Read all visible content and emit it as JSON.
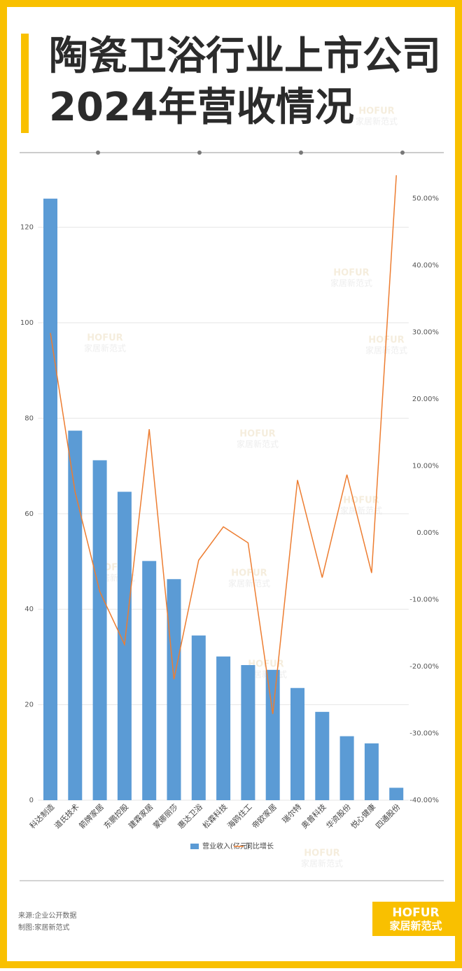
{
  "title_lines": [
    "陶瓷卫浴行业上市公司",
    "2024年营收情况"
  ],
  "chart_data": {
    "type": "bar-line",
    "categories": [
      "科达制造",
      "道氏技术",
      "箭牌家居",
      "东鹏控股",
      "建霖家居",
      "蒙娜丽莎",
      "惠达卫浴",
      "松霖科技",
      "海鸥住工",
      "帝欧家居",
      "瑞尔特",
      "奥普科技",
      "华资股份",
      "悦心健康",
      "四通股份"
    ],
    "series": [
      {
        "name": "营业收入(亿元)",
        "type": "bar",
        "color": "#5b9bd5",
        "values": [
          126.0,
          77.4,
          71.2,
          64.6,
          50.1,
          46.3,
          34.5,
          30.1,
          28.3,
          27.3,
          23.5,
          18.5,
          13.4,
          11.9,
          2.6
        ]
      },
      {
        "name": "同比增长",
        "type": "line",
        "axis": "y2",
        "color": "#ed7d31",
        "values": [
          29.9,
          6.1,
          -8.8,
          -16.7,
          15.5,
          -21.9,
          -4.1,
          0.9,
          -1.5,
          -27.1,
          7.9,
          -6.7,
          8.7,
          -6.0,
          53.5
        ]
      }
    ],
    "ylim": [
      0,
      133
    ],
    "yticks": [
      0,
      20,
      40,
      60,
      80,
      100,
      120
    ],
    "y2lim": [
      -40,
      55
    ],
    "y2ticks": [
      {
        "value": -40,
        "label": "-40.00%"
      },
      {
        "value": -30,
        "label": "-30.00%"
      },
      {
        "value": -20,
        "label": "-20.00%"
      },
      {
        "value": -10,
        "label": "-10.00%"
      },
      {
        "value": 0,
        "label": "0.00%"
      },
      {
        "value": 10,
        "label": "10.00%"
      },
      {
        "value": 20,
        "label": "20.00%"
      },
      {
        "value": 30,
        "label": "30.00%"
      },
      {
        "value": 40,
        "label": "40.00%"
      },
      {
        "value": 50,
        "label": "50.00%"
      }
    ],
    "grid": true,
    "legend": "bottom"
  },
  "watermark": {
    "brand": "HOFUR",
    "name": "家居新范式"
  },
  "footer": {
    "source": "来源:企业公开数据",
    "maker": "制图:家居新范式"
  },
  "logo": {
    "brand": "HOFUR",
    "name": "家居新范式"
  }
}
